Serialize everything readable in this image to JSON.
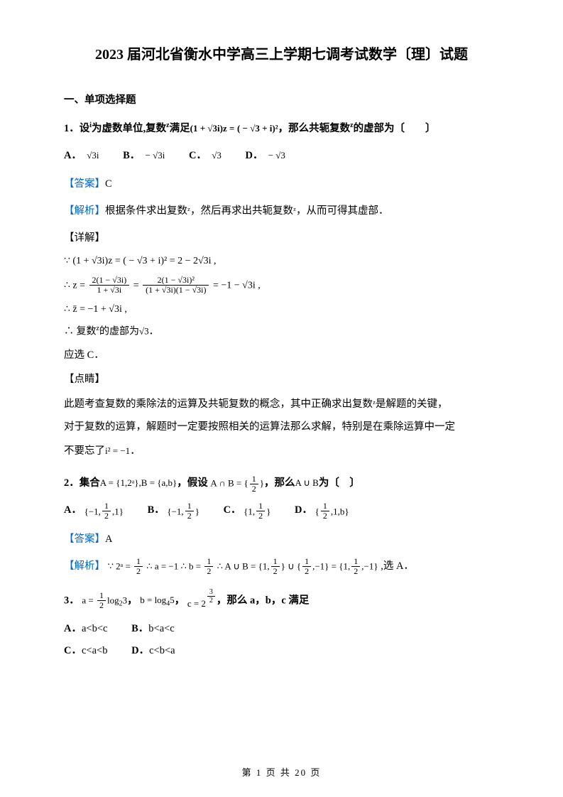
{
  "colors": {
    "text": "#000000",
    "accent": "#0066cc",
    "background": "#ffffff"
  },
  "typography": {
    "body_family": "SimSun",
    "body_size_pt": 11,
    "title_size_pt": 15,
    "title_weight": "bold"
  },
  "title": "2023 届河北省衡水中学高三上学期七调考试数学〔理〕试题",
  "section1_header": "一、单项选择题",
  "q1": {
    "number": "1．",
    "stem_pre": "设",
    "i_sup": "i",
    "stem_mid1": "为虚数单位,复数",
    "z_sup": "z",
    "stem_mid2": "满足",
    "eq_lhs": "(1 + √3i)z =",
    "eq_rhs": "( − √3 + i)²",
    "stem_mid3": "，那么共轭复数",
    "stem_mid4": "的虚部为〔　　〕",
    "choices": {
      "A": "√3i",
      "B": "− √3i",
      "C": "√3",
      "D": "− √3"
    },
    "answer_label": "【答案】",
    "answer": "C",
    "analysis_label": "【解析】",
    "analysis_text": "根据条件求出复数ᶻ，然后再求出共轭复数ᶻ，从而可得其虚部．",
    "detail_label": "【详解】",
    "step1": "∵ (1 + √3i)z =  ( − √3 + i)² = 2 − 2√3i ,",
    "step2_prefix": "∴ z = ",
    "step2_f1_num": "2(1 − √3i)",
    "step2_f1_den": "1 + √3i",
    "step2_eq": " = ",
    "step2_f2_num": "2(1 − √3i)²",
    "step2_f2_den": "(1 + √3i)(1 − √3i)",
    "step2_tail": " = −1 − √3i ,",
    "step3": "∴ z̄ = −1 + √3i ,",
    "step4_pre": "∴ 复数",
    "step4_mid": "的虚部为",
    "step4_val": "√3",
    "step4_end": "．",
    "select": "应选 C．",
    "dianjing_label": "【点睛】",
    "dianjing_p1": "此题考查复数的乘除法的运算及共轭复数的概念，其中正确求出复数ᶻ是解题的关键，",
    "dianjing_p2": "对于复数的运算，解题时一定要按照相关的运算法那么求解，特别是在乘除运算中一定",
    "dianjing_p3_pre": "不要忘了",
    "dianjing_p3_eq": "i² = −1",
    "dianjing_p3_end": "．"
  },
  "q2": {
    "number": "2．",
    "stem_pre": "集合",
    "setA": "A = {1,2ᵃ},B = {a,b}",
    "mid1": "，假设",
    "inter_lhs": "A ∩ B = {",
    "half_num": "1",
    "half_den": "2",
    "inter_rhs": "}",
    "mid2": "，那么",
    "union": "A ∪ B",
    "mid3": "为〔　〕",
    "choices": {
      "A_pre": "{−1,",
      "A_mid_num": "1",
      "A_mid_den": "2",
      "A_post": ",1}",
      "B_pre": "{−1,",
      "B_mid_num": "1",
      "B_mid_den": "2",
      "B_post": "}",
      "C_pre": "{1,",
      "C_mid_num": "1",
      "C_mid_den": "2",
      "C_post": "}",
      "D_pre": "{",
      "D_mid_num": "1",
      "D_mid_den": "2",
      "D_post": ",1,b}"
    },
    "choice_labels": {
      "A": "A．",
      "B": "B．",
      "C": "C．",
      "D": "D．"
    },
    "answer_label": "【答案】",
    "answer": "A",
    "analysis_label": "【解析】",
    "expl_1": "∵ 2ᵃ = ",
    "expl_2": " ∴ a = −1 ∴ b = ",
    "expl_3": " ∴ A ∪ B = {1,",
    "expl_4": "} ∪ {",
    "expl_5": ",−1} = {1,",
    "expl_6": ",−1}",
    "expl_tail": " ,选 A．"
  },
  "q3": {
    "number": "3．",
    "a_eq_pre": "a = ",
    "a_frac_num": "1",
    "a_frac_den": "2",
    "a_eq_mid": "log",
    "a_sub": "2",
    "a_eq_post": "3",
    "sep1": "，",
    "b_eq": "b = log",
    "b_sub": "4",
    "b_tail": "5",
    "sep2": "，",
    "c_pre": "c = 2",
    "c_exp_num": "3",
    "c_exp_den": "2",
    "stem_tail": "，那么 a，b，c 满足",
    "choices": {
      "A": "a<b<c",
      "B": "b<a<c",
      "C": "c<a<b",
      "D": "c<b<a"
    },
    "choice_labels": {
      "A": "A．",
      "B": "B．",
      "C": "C．",
      "D": "D．"
    }
  },
  "footer": "第 1 页 共 20 页"
}
